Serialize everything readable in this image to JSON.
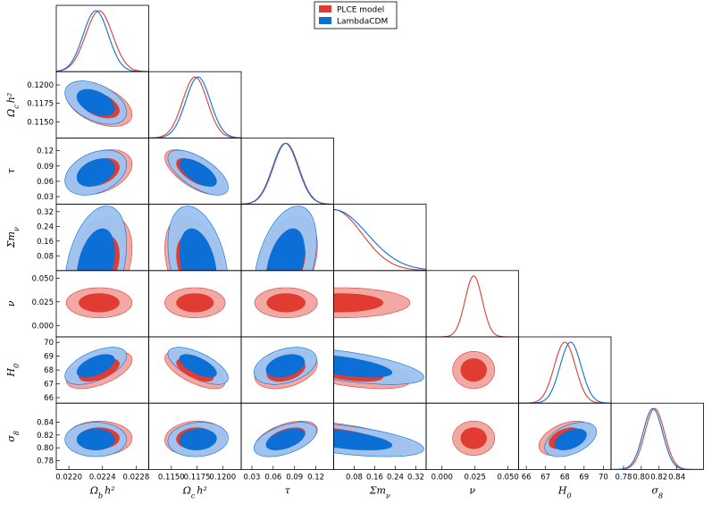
{
  "chart_data": {
    "type": "triangle-corner",
    "parameters": [
      {
        "key": "obh2",
        "label_main": "Ω",
        "label_sub": "b",
        "label_tail": "h²",
        "range": [
          0.02185,
          0.02295
        ],
        "ticks": [
          "0.0220",
          "0.0224",
          "0.0228"
        ],
        "tick_values": [
          0.022,
          0.0224,
          0.0228
        ]
      },
      {
        "key": "och2",
        "label_main": "Ω",
        "label_sub": "c",
        "label_tail": "h²",
        "range": [
          0.1128,
          0.1218
        ],
        "ticks": [
          "0.1150",
          "0.1175",
          "0.1200"
        ],
        "tick_values": [
          0.115,
          0.1175,
          0.12
        ]
      },
      {
        "key": "tau",
        "label_main": "τ",
        "label_sub": "",
        "label_tail": "",
        "range": [
          0.015,
          0.145
        ],
        "ticks": [
          "0.03",
          "0.06",
          "0.09",
          "0.12"
        ],
        "tick_values": [
          0.03,
          0.06,
          0.09,
          0.12
        ]
      },
      {
        "key": "mnu",
        "label_main": "Σm",
        "label_sub": "ν",
        "label_tail": "",
        "range": [
          0.0,
          0.36
        ],
        "ticks": [
          "0.08",
          "0.16",
          "0.24",
          "0.32"
        ],
        "tick_values": [
          0.08,
          0.16,
          0.24,
          0.32
        ]
      },
      {
        "key": "nu",
        "label_main": "ν",
        "label_sub": "",
        "label_tail": "",
        "range": [
          -0.012,
          0.058
        ],
        "ticks": [
          "0.000",
          "0.025",
          "0.050"
        ],
        "tick_values": [
          0.0,
          0.025,
          0.05
        ]
      },
      {
        "key": "H0",
        "label_main": "H",
        "label_sub": "0",
        "label_tail": "",
        "range": [
          65.6,
          70.4
        ],
        "ticks": [
          "66",
          "67",
          "68",
          "69",
          "70"
        ],
        "tick_values": [
          66,
          67,
          68,
          69,
          70
        ]
      },
      {
        "key": "s8",
        "label_main": "σ",
        "label_sub": "8",
        "label_tail": "",
        "range": [
          0.766,
          0.87
        ],
        "ticks": [
          "0.78",
          "0.80",
          "0.82",
          "0.84"
        ],
        "tick_values": [
          0.78,
          0.8,
          0.82,
          0.84
        ]
      }
    ],
    "series": [
      {
        "name": "PLCE model",
        "color": "#e03c31",
        "fill_outer": "#f2a9a3",
        "fill_inner": "#e03c31",
        "marginals": [
          {
            "type": "gaussian",
            "mean": 0.02236,
            "sigma": 0.00016
          },
          {
            "type": "gaussian",
            "mean": 0.1173,
            "sigma": 0.0012
          },
          {
            "type": "gaussian",
            "mean": 0.078,
            "sigma": 0.018
          },
          {
            "type": "halfnormal",
            "scale": 0.11
          },
          {
            "type": "gaussian",
            "mean": 0.024,
            "sigma": 0.0065
          },
          {
            "type": "gaussian",
            "mean": 68.0,
            "sigma": 0.55
          },
          {
            "type": "gaussian",
            "mean": 0.815,
            "sigma": 0.011
          }
        ]
      },
      {
        "name": "LambdaCDM",
        "color": "#0b6fd6",
        "fill_outer": "#9cc3f0",
        "fill_inner": "#0b6fd6",
        "marginals": [
          {
            "type": "gaussian",
            "mean": 0.02232,
            "sigma": 0.00015
          },
          {
            "type": "gaussian",
            "mean": 0.1176,
            "sigma": 0.0012
          },
          {
            "type": "gaussian",
            "mean": 0.077,
            "sigma": 0.018
          },
          {
            "type": "halfnormal",
            "scale": 0.13
          },
          null,
          {
            "type": "gaussian",
            "mean": 68.3,
            "sigma": 0.55
          },
          {
            "type": "gaussian",
            "mean": 0.813,
            "sigma": 0.011
          }
        ]
      }
    ],
    "correlations": {
      "1-0": -0.45,
      "2-0": 0.35,
      "2-1": -0.65,
      "3-0": 0.35,
      "3-1": -0.35,
      "3-2": 0.4,
      "4-0": 0.0,
      "4-1": 0.0,
      "4-2": 0.0,
      "4-3": 0.0,
      "5-0": 0.55,
      "5-1": -0.65,
      "5-2": 0.35,
      "5-3": -0.6,
      "5-4": 0.0,
      "6-0": 0.0,
      "6-1": 0.1,
      "6-2": 0.5,
      "6-3": -0.55,
      "6-4": 0.0,
      "6-5": 0.45
    },
    "legend": {
      "placement": "top-center",
      "entries": [
        "PLCE model",
        "LambdaCDM"
      ]
    },
    "grid": false
  }
}
